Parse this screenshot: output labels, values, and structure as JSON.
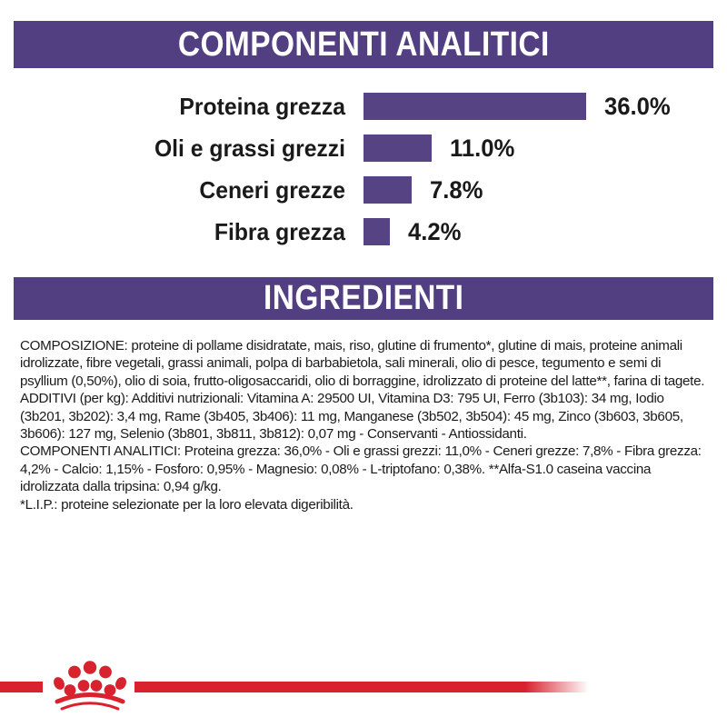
{
  "colors": {
    "purple_header": "#523f81",
    "purple_bar": "#564383",
    "red_brand": "#d8232e",
    "text": "#1a1a1a"
  },
  "sections": {
    "analytics_header": "COMPONENTI ANALITICI",
    "ingredients_header": "INGREDIENTI"
  },
  "chart_data": {
    "type": "bar",
    "orientation": "horizontal",
    "title": "COMPONENTI ANALITICI",
    "categories": [
      "Proteina grezza",
      "Oli e grassi grezzi",
      "Ceneri grezze",
      "Fibra grezza"
    ],
    "values": [
      36.0,
      11.0,
      7.8,
      4.2
    ],
    "value_labels": [
      "36.0%",
      "11.0%",
      "7.8%",
      "4.2%"
    ],
    "unit": "%",
    "xlim": [
      0,
      36
    ],
    "grid": false,
    "legend": false,
    "bar_color": "#564383"
  },
  "ingredients": {
    "composizione": "COMPOSIZIONE: proteine di pollame disidratate, mais, riso, glutine di frumento*, glutine di mais, proteine animali idrolizzate, fibre vegetali, grassi animali, polpa di barbabietola, sali minerali, olio di pesce, tegumento e semi di psyllium (0,50%), olio di soia, frutto-oligosaccaridi, olio di borraggine, idrolizzato di proteine del latte**, farina di tagete.",
    "additivi": "ADDITIVI (per kg): Additivi nutrizionali: Vitamina A: 29500 UI, Vitamina D3: 795 UI, Ferro (3b103): 34 mg, Iodio (3b201, 3b202): 3,4 mg, Rame (3b405, 3b406): 11 mg, Manganese (3b502, 3b504): 45 mg, Zinco (3b603, 3b605, 3b606): 127 mg, Selenio (3b801, 3b811, 3b812): 0,07 mg - Conservanti - Antiossidanti.",
    "componenti_analitici": "COMPONENTI ANALITICI: Proteina grezza: 36,0% - Oli e grassi grezzi: 11,0% - Ceneri grezze: 7,8% - Fibra grezza: 4,2% - Calcio: 1,15% - Fosforo: 0,95% - Magnesio: 0,08% - L-triptofano: 0,38%. **Alfa-S1.0 caseina vaccina idrolizzata dalla tripsina: 0,94 g/kg.",
    "lip_note": "*L.I.P.: proteine selezionate per la loro elevata digeribilità."
  },
  "footer": {
    "logo_icon": "royal-canin-crown-logo"
  }
}
